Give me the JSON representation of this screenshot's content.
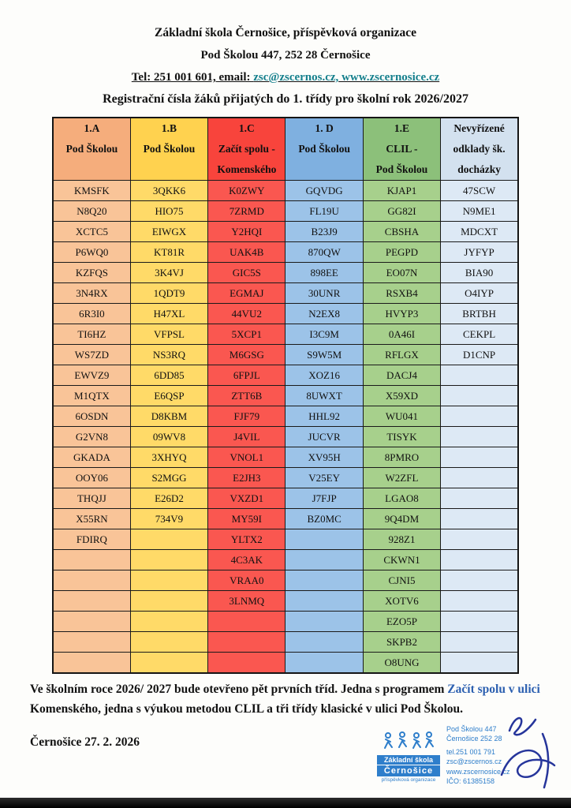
{
  "header": {
    "org_line": "Základní škola Černošice, příspěvková organizace",
    "address_line": "Pod Školou 447, 252 28 Černošice",
    "contact_prefix": "Tel: 251 001 601, email: ",
    "contact_email": "zsc@zscernos.cz,",
    "contact_web": "  www.zscernosice.cz"
  },
  "title": "Registrační čísla žáků přijatých do 1. třídy pro školní rok 2026/2027",
  "table": {
    "row_count": 24,
    "columns": [
      {
        "id": "1A",
        "header_lines": [
          "1.A",
          "Pod Školou"
        ],
        "header_color": "#F5AD7C",
        "cell_color": "#F9C498",
        "codes": [
          "KMSFK",
          "N8Q20",
          "XCTC5",
          "P6WQ0",
          "KZFQS",
          "3N4RX",
          "6R3I0",
          "TI6HZ",
          "WS7ZD",
          "EWVZ9",
          "M1QTX",
          "6OSDN",
          "G2VN8",
          "GKADA",
          "OOY06",
          "THQJJ",
          "X55RN",
          "FDIRQ"
        ]
      },
      {
        "id": "1B",
        "header_lines": [
          "1.B",
          "Pod Školou"
        ],
        "header_color": "#FFD24F",
        "cell_color": "#FFDA68",
        "codes": [
          "3QKK6",
          "HIO75",
          "EIWGX",
          "KT81R",
          "3K4VJ",
          "1QDT9",
          "H47XL",
          "VFPSL",
          "NS3RQ",
          "6DD85",
          "E6QSP",
          "D8KBM",
          "09WV8",
          "3XHYQ",
          "S2MGG",
          "E26D2",
          "734V9"
        ]
      },
      {
        "id": "1C",
        "header_lines": [
          "1.C",
          "Začít spolu -",
          "Komenského"
        ],
        "header_color": "#F8443C",
        "cell_color": "#FA5750",
        "codes": [
          "K0ZWY",
          "7ZRMD",
          "Y2HQI",
          "UAK4B",
          "GIC5S",
          "EGMAJ",
          "44VU2",
          "5XCP1",
          "M6GSG",
          "6FPJL",
          "ZTT6B",
          "FJF79",
          "J4VIL",
          "VNOL1",
          "E2JH3",
          "VXZD1",
          "MY59I",
          "YLTX2",
          "4C3AK",
          "VRAA0",
          "3LNMQ"
        ]
      },
      {
        "id": "1D",
        "header_lines": [
          "1. D",
          "Pod Školou"
        ],
        "header_color": "#7FB0E0",
        "cell_color": "#9CC3E8",
        "codes": [
          "GQVDG",
          "FL19U",
          "B23J9",
          "870QW",
          "898EE",
          "30UNR",
          "N2EX8",
          "I3C9M",
          "S9W5M",
          "XOZ16",
          "8UWXT",
          "HHL92",
          "JUCVR",
          "XV95H",
          "V25EY",
          "J7FJP",
          "BZ0MC"
        ]
      },
      {
        "id": "1E",
        "header_lines": [
          "1.E",
          "CLIL -",
          "Pod Školou"
        ],
        "header_color": "#8CC07A",
        "cell_color": "#A7D08C",
        "codes": [
          "KJAP1",
          "GG82I",
          "CBSHA",
          "PEGPD",
          "EO07N",
          "RSXB4",
          "HVYP3",
          "0A46I",
          "RFLGX",
          "DACJ4",
          "X59XD",
          "WU041",
          "TISYK",
          "8PMRO",
          "W2ZFL",
          "LGAO8",
          "9Q4DM",
          "928Z1",
          "CKWN1",
          "CJNI5",
          "XOTV6",
          "EZO5P",
          "SKPB2",
          "O8UNG"
        ]
      },
      {
        "id": "odklady",
        "header_lines": [
          "Nevyřízené",
          "odklady šk.",
          "docházky"
        ],
        "header_color": "#D3E1EF",
        "cell_color": "#DDE9F5",
        "codes": [
          "47SCW",
          "N9ME1",
          "MDCXT",
          "JYFYP",
          "BIA90",
          "O4IYP",
          "BRTBH",
          "CEKPL",
          "D1CNP"
        ]
      }
    ]
  },
  "footer": {
    "paragraph_segments": [
      {
        "text": "Ve školním roce 2026/ 2027 bude otevřeno pět prvních tříd. Jedna s programem ",
        "color": "#111111"
      },
      {
        "text": "Začít spolu v ulici",
        "color": "#2b5fb0"
      },
      {
        "text": " Komenského, jedna s výukou metodou CLIL a tři třídy klasické v ulici Pod Školou.",
        "color": "#111111"
      }
    ],
    "date_line": "Černošice 27. 2. 2026"
  },
  "stamp": {
    "logo_top": "Základní škola",
    "logo_bottom": "Černošice",
    "logo_sub": "příspěvková organizace",
    "addr1": "Pod Školou 447",
    "addr2": "Černošice 252 28",
    "tel": "tel.251 001 791",
    "email": "zsc@zscernos.cz",
    "web": "www.zscernosice.cz",
    "ico": "IČO: 61385158"
  },
  "colors": {
    "link_teal": "#16808d",
    "stamp_blue": "#2e7ecb",
    "signature_ink": "#26359b"
  }
}
